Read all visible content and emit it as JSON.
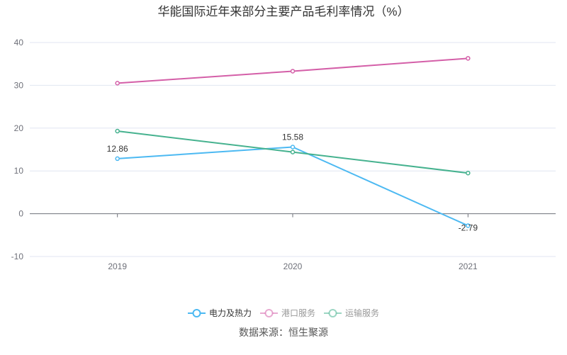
{
  "chart_data": {
    "type": "line",
    "title": "华能国际近年来部分主要产品毛利率情况（%）",
    "categories": [
      "2019",
      "2020",
      "2021"
    ],
    "ylim": [
      -10,
      40
    ],
    "yticks": [
      -10,
      0,
      10,
      20,
      30,
      40
    ],
    "grid": true,
    "legend_position": "bottom",
    "series": [
      {
        "name": "电力及热力",
        "values": [
          12.86,
          15.58,
          -2.79
        ],
        "color": "#4cb9f2",
        "labels": [
          "12.86",
          "15.58",
          "-2.79"
        ],
        "active": true
      },
      {
        "name": "港口服务",
        "values": [
          30.5,
          33.3,
          36.3
        ],
        "color": "#d45fa8",
        "active": false
      },
      {
        "name": "运输服务",
        "values": [
          19.3,
          14.4,
          9.5
        ],
        "color": "#46b28f",
        "active": false
      }
    ],
    "source": "数据来源：恒生聚源"
  }
}
